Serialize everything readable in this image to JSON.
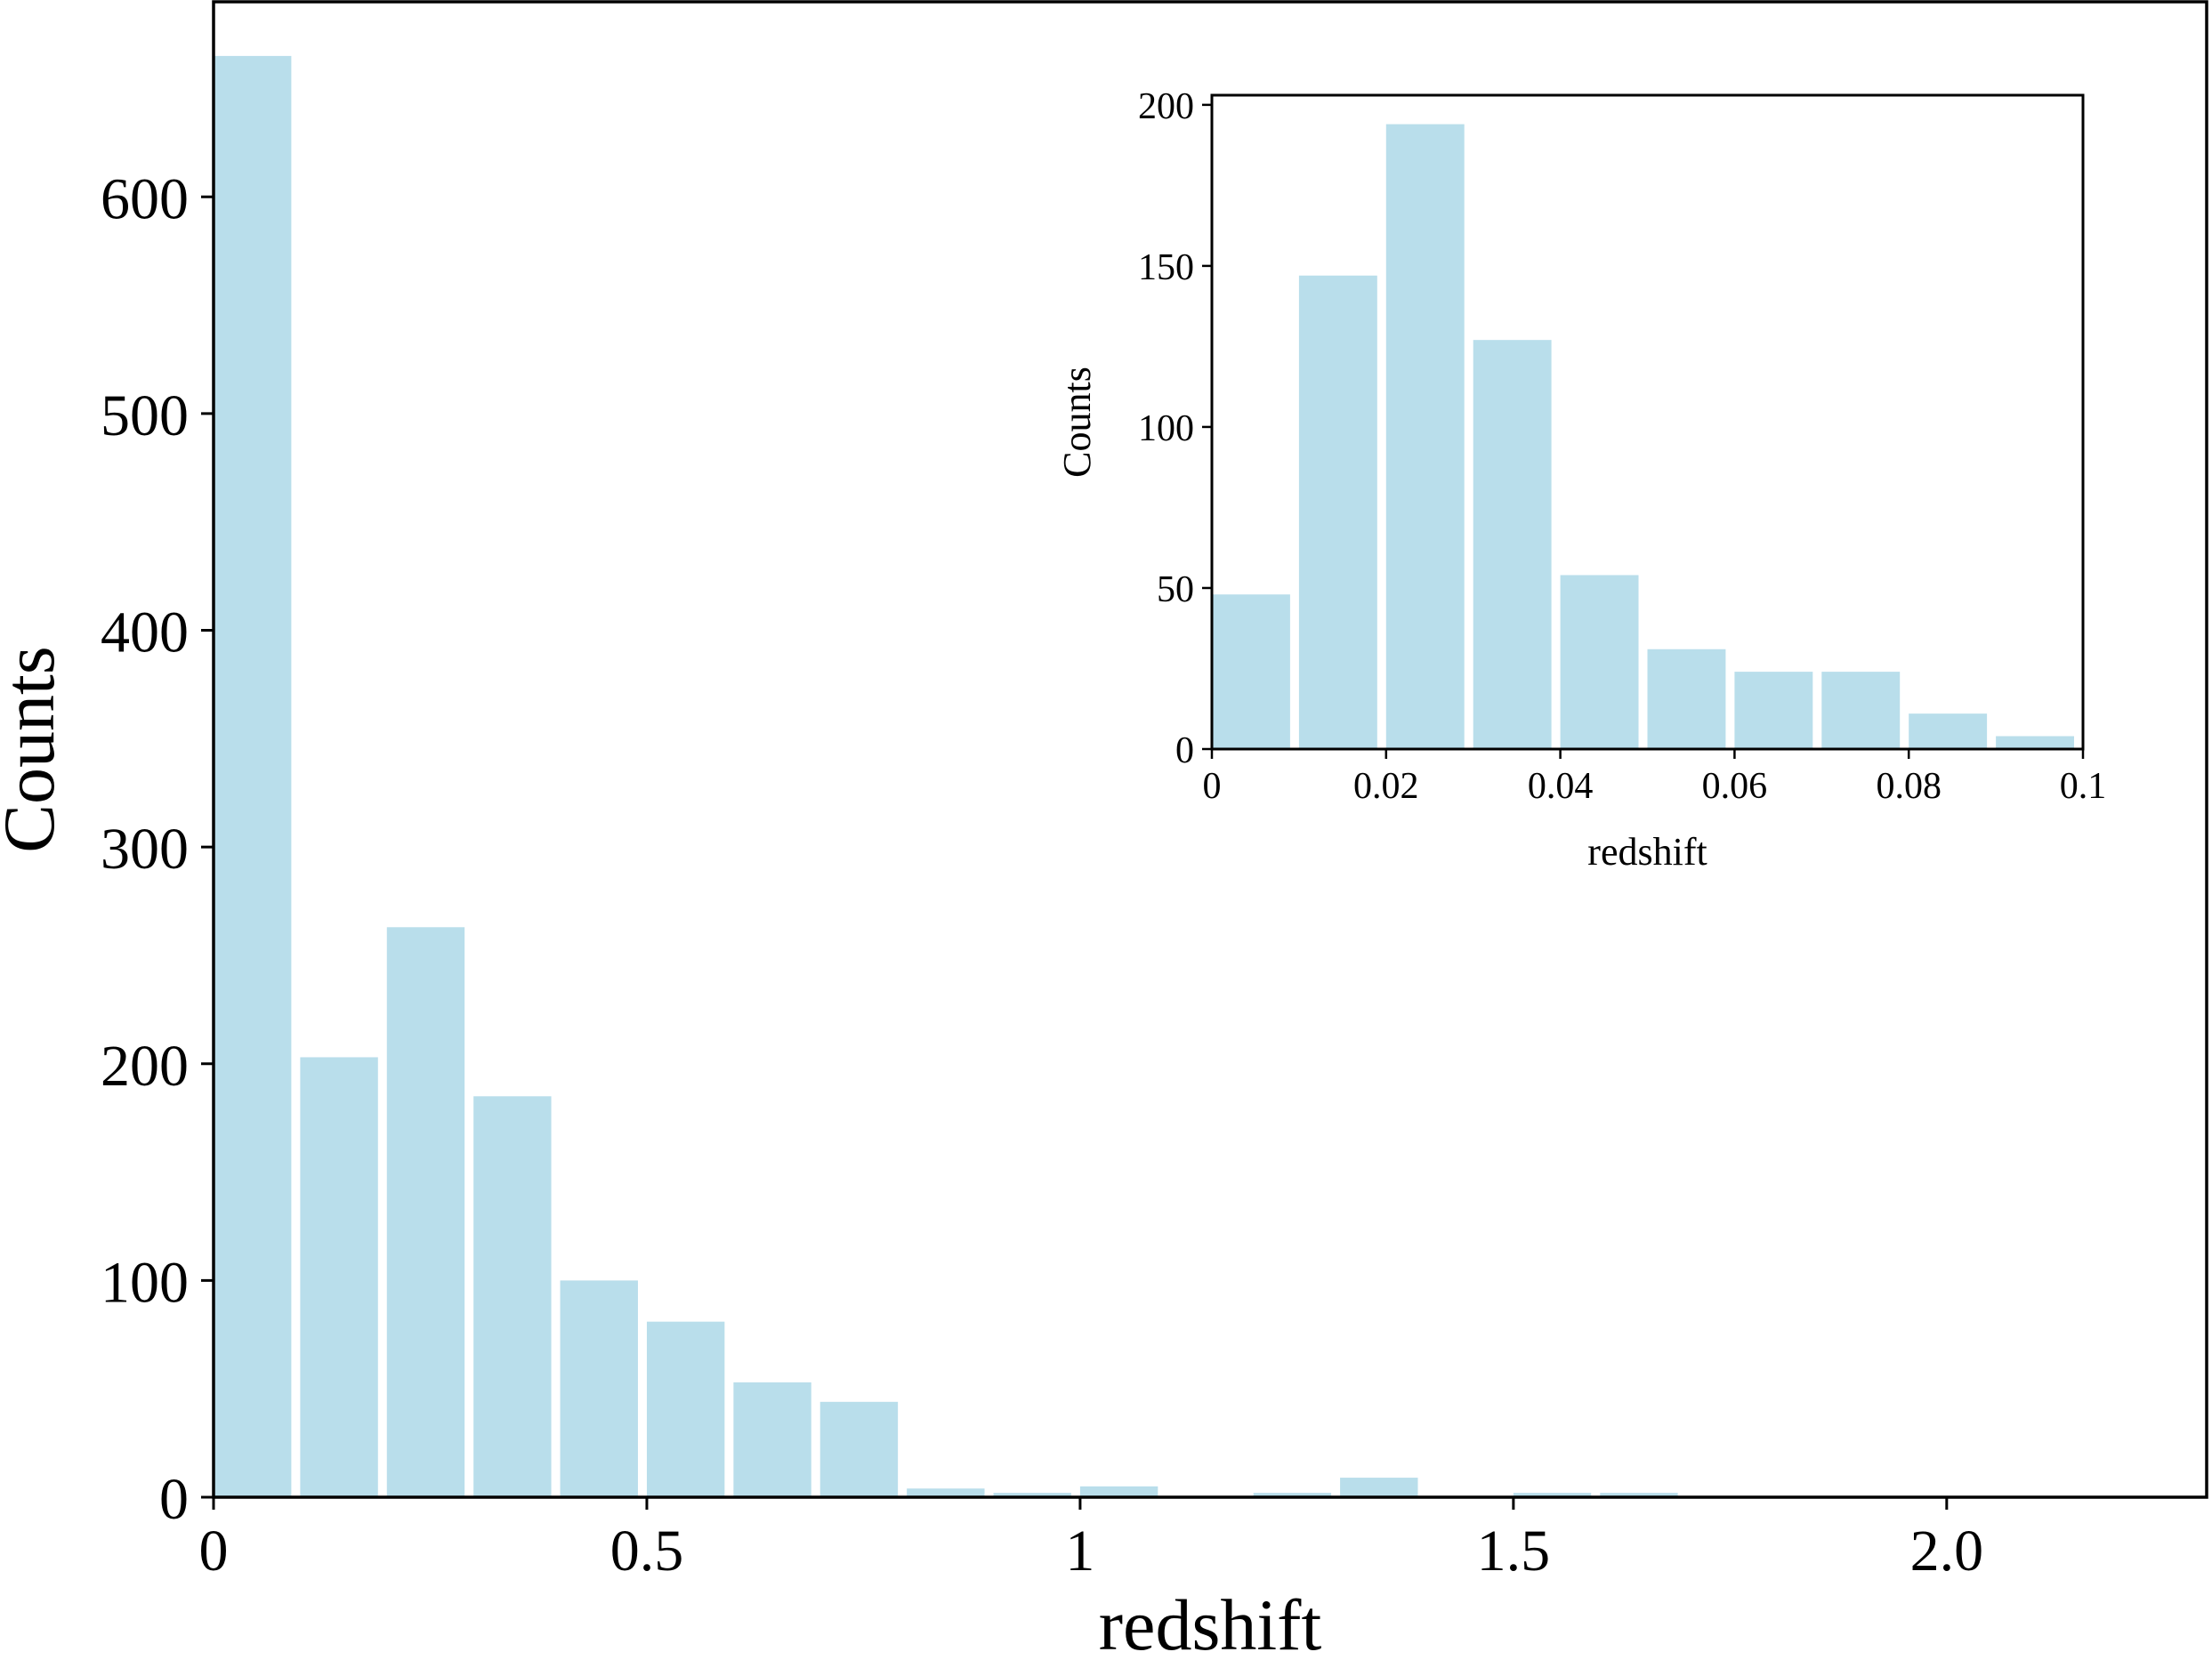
{
  "chart_data": [
    {
      "type": "bar",
      "title": "",
      "xlabel": "redshift",
      "ylabel": "Counts",
      "bar_color": "#b9deeb",
      "bin_width": 0.1,
      "xlim": [
        0,
        2.3
      ],
      "ylim": [
        0,
        690
      ],
      "x_ticks": [
        {
          "value": 0,
          "label": "0"
        },
        {
          "value": 0.5,
          "label": "0.5"
        },
        {
          "value": 1,
          "label": "1"
        },
        {
          "value": 1.5,
          "label": "1.5"
        },
        {
          "value": 2.0,
          "label": "2.0"
        }
      ],
      "y_ticks": [
        {
          "value": 0,
          "label": "0"
        },
        {
          "value": 100,
          "label": "100"
        },
        {
          "value": 200,
          "label": "200"
        },
        {
          "value": 300,
          "label": "300"
        },
        {
          "value": 400,
          "label": "400"
        },
        {
          "value": 500,
          "label": "500"
        },
        {
          "value": 600,
          "label": "600"
        }
      ],
      "series": [
        {
          "bin_starts": [
            0.0,
            0.1,
            0.2,
            0.3,
            0.4,
            0.5,
            0.6,
            0.7,
            0.8,
            0.9,
            1.0,
            1.1,
            1.2,
            1.3,
            1.4,
            1.5,
            1.6,
            1.7,
            1.8,
            1.9,
            2.0,
            2.1
          ],
          "values": [
            665,
            203,
            263,
            185,
            100,
            81,
            53,
            44,
            4,
            2,
            5,
            0,
            2,
            9,
            0,
            2,
            2,
            0,
            0,
            0,
            0,
            0
          ]
        }
      ],
      "grid": false
    },
    {
      "type": "bar",
      "title": "",
      "xlabel": "redshift",
      "ylabel": "Counts",
      "bar_color": "#b9deeb",
      "bin_width": 0.01,
      "xlim": [
        0,
        0.1
      ],
      "ylim": [
        0,
        203
      ],
      "x_ticks": [
        {
          "value": 0,
          "label": "0"
        },
        {
          "value": 0.02,
          "label": "0.02"
        },
        {
          "value": 0.04,
          "label": "0.04"
        },
        {
          "value": 0.06,
          "label": "0.06"
        },
        {
          "value": 0.08,
          "label": "0.08"
        },
        {
          "value": 0.1,
          "label": "0.1"
        }
      ],
      "y_ticks": [
        {
          "value": 0,
          "label": "0"
        },
        {
          "value": 50,
          "label": "50"
        },
        {
          "value": 100,
          "label": "100"
        },
        {
          "value": 150,
          "label": "150"
        },
        {
          "value": 200,
          "label": "200"
        }
      ],
      "series": [
        {
          "bin_starts": [
            0.0,
            0.01,
            0.02,
            0.03,
            0.04,
            0.05,
            0.06,
            0.07,
            0.08,
            0.09
          ],
          "values": [
            48,
            147,
            194,
            127,
            54,
            31,
            24,
            24,
            11,
            4
          ]
        }
      ],
      "grid": false
    }
  ]
}
